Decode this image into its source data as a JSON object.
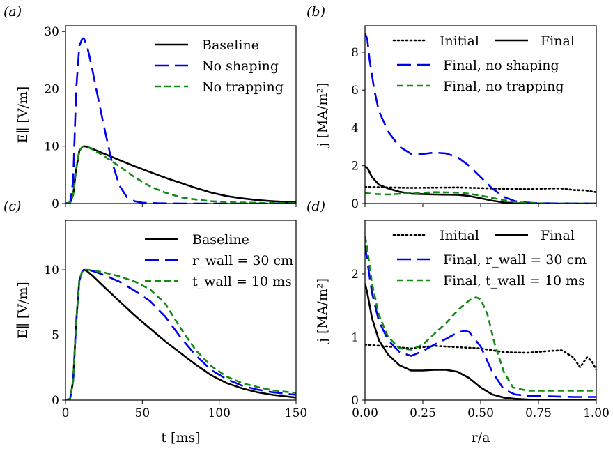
{
  "chart_data": [
    {
      "panel_label": "(a)",
      "type": "line",
      "xlabel": "",
      "ylabel": "E∥ [V/m]",
      "xlim": [
        0,
        150
      ],
      "ylim": [
        0,
        31
      ],
      "xticks": [
        0,
        50,
        100,
        150
      ],
      "xtick_labels": [
        "",
        "",
        "",
        ""
      ],
      "yticks": [
        0,
        10,
        20,
        30
      ],
      "ytick_labels": [
        "0",
        "10",
        "20",
        "30"
      ],
      "legend": {
        "position": "top-right",
        "columns": 1
      },
      "series": [
        {
          "name": "Baseline",
          "color": "#000000",
          "style": "solid",
          "x": [
            0,
            3,
            5,
            7,
            9,
            11,
            12,
            14,
            18,
            25,
            35,
            45,
            55,
            65,
            75,
            85,
            95,
            105,
            115,
            125,
            135,
            150
          ],
          "y": [
            0,
            0.1,
            1.5,
            6,
            9.2,
            9.9,
            10,
            9.9,
            9.5,
            8.7,
            7.6,
            6.5,
            5.5,
            4.5,
            3.6,
            2.7,
            1.9,
            1.3,
            0.9,
            0.6,
            0.4,
            0.2
          ]
        },
        {
          "name": "No shaping",
          "color": "#0000ee",
          "style": "longdash",
          "x": [
            0,
            3,
            5,
            7,
            9,
            11,
            12,
            14,
            17,
            20,
            25,
            30,
            35,
            40,
            45,
            50,
            60,
            75,
            100,
            150
          ],
          "y": [
            0,
            0.2,
            4,
            20,
            27.5,
            28.8,
            28.8,
            27.5,
            24,
            20,
            13.5,
            7.5,
            3.2,
            1.1,
            0.4,
            0.15,
            0.05,
            0,
            0,
            0
          ]
        },
        {
          "name": "No trapping",
          "color": "#138a13",
          "style": "dash",
          "x": [
            0,
            3,
            5,
            7,
            9,
            11,
            12,
            14,
            18,
            25,
            35,
            45,
            55,
            65,
            75,
            85,
            95,
            110,
            130,
            150
          ],
          "y": [
            0,
            0.1,
            1.5,
            6,
            9.2,
            9.9,
            10,
            9.9,
            9.4,
            8.3,
            6.5,
            4.6,
            3.0,
            1.9,
            1.1,
            0.7,
            0.4,
            0.2,
            0.1,
            0.05
          ]
        }
      ]
    },
    {
      "panel_label": "(b)",
      "type": "line",
      "xlabel": "",
      "ylabel": "j [MA/m²]",
      "xlim": [
        0,
        1
      ],
      "ylim": [
        0,
        9.4
      ],
      "xticks": [
        0,
        0.25,
        0.5,
        0.75,
        1.0
      ],
      "xtick_labels": [
        "",
        "",
        "",
        "",
        ""
      ],
      "yticks": [
        0,
        2,
        4,
        6,
        8
      ],
      "ytick_labels": [
        "0",
        "2",
        "4",
        "6",
        "8"
      ],
      "legend": {
        "position": "top-right",
        "columns": 2
      },
      "series": [
        {
          "name": "Initial",
          "color": "#000000",
          "style": "dot",
          "x": [
            0,
            0.1,
            0.2,
            0.3,
            0.4,
            0.5,
            0.6,
            0.7,
            0.8,
            0.85,
            0.9,
            0.95,
            1.0
          ],
          "y": [
            0.88,
            0.85,
            0.83,
            0.84,
            0.85,
            0.82,
            0.78,
            0.76,
            0.8,
            0.8,
            0.72,
            0.7,
            0.6
          ]
        },
        {
          "name": "Final",
          "color": "#000000",
          "style": "solid",
          "x": [
            0,
            0.01,
            0.03,
            0.06,
            0.1,
            0.15,
            0.2,
            0.3,
            0.4,
            0.45,
            0.5,
            0.55,
            0.6,
            0.65,
            0.7,
            0.8,
            1.0
          ],
          "y": [
            1.95,
            1.9,
            1.4,
            1.0,
            0.8,
            0.62,
            0.52,
            0.48,
            0.46,
            0.4,
            0.28,
            0.15,
            0.06,
            0.02,
            0.01,
            0,
            0
          ]
        },
        {
          "name": "Final, no shaping",
          "color": "#0000ee",
          "style": "longdash",
          "x": [
            0,
            0.01,
            0.02,
            0.04,
            0.06,
            0.1,
            0.15,
            0.2,
            0.25,
            0.3,
            0.35,
            0.4,
            0.45,
            0.5,
            0.55,
            0.6,
            0.65,
            0.7,
            0.75,
            0.8,
            1.0
          ],
          "y": [
            9,
            8.7,
            7.6,
            6.0,
            4.9,
            3.8,
            3.0,
            2.62,
            2.62,
            2.7,
            2.65,
            2.45,
            2.0,
            1.4,
            0.8,
            0.35,
            0.12,
            0.05,
            0.02,
            0.01,
            0
          ]
        },
        {
          "name": "Final, no trapping",
          "color": "#138a13",
          "style": "dash",
          "x": [
            0,
            0.05,
            0.1,
            0.2,
            0.3,
            0.4,
            0.45,
            0.5,
            0.55,
            0.6,
            0.65,
            0.7,
            0.75,
            0.8,
            1.0
          ],
          "y": [
            0.55,
            0.5,
            0.48,
            0.55,
            0.6,
            0.58,
            0.52,
            0.42,
            0.3,
            0.18,
            0.08,
            0.03,
            0.01,
            0,
            0
          ]
        }
      ]
    },
    {
      "panel_label": "(c)",
      "type": "line",
      "xlabel": "t [ms]",
      "ylabel": "E∥ [V/m]",
      "xlim": [
        0,
        150
      ],
      "ylim": [
        0,
        13.8
      ],
      "xticks": [
        0,
        50,
        100,
        150
      ],
      "xtick_labels": [
        "0",
        "50",
        "100",
        "150"
      ],
      "yticks": [
        0,
        5,
        10
      ],
      "ytick_labels": [
        "0",
        "5",
        "10"
      ],
      "legend": {
        "position": "top-right",
        "columns": 1
      },
      "series": [
        {
          "name": "Baseline",
          "color": "#000000",
          "style": "solid",
          "x": [
            0,
            3,
            5,
            7,
            9,
            11,
            12,
            14,
            18,
            25,
            35,
            45,
            55,
            65,
            75,
            85,
            95,
            105,
            115,
            125,
            135,
            150
          ],
          "y": [
            0,
            0.1,
            1.5,
            6,
            9.2,
            9.9,
            10,
            9.9,
            9.5,
            8.7,
            7.6,
            6.5,
            5.5,
            4.5,
            3.6,
            2.7,
            1.9,
            1.3,
            0.9,
            0.6,
            0.4,
            0.2
          ]
        },
        {
          "name": "r_wall = 30 cm",
          "color": "#0000ee",
          "style": "longdash",
          "x": [
            0,
            3,
            5,
            7,
            9,
            11,
            12,
            14,
            18,
            25,
            35,
            45,
            55,
            65,
            75,
            85,
            95,
            105,
            115,
            125,
            135,
            150
          ],
          "y": [
            0,
            0.1,
            1.5,
            6,
            9.2,
            9.9,
            10,
            10,
            9.9,
            9.6,
            9.1,
            8.4,
            7.6,
            6.4,
            4.8,
            3.4,
            2.3,
            1.6,
            1.1,
            0.8,
            0.6,
            0.4
          ]
        },
        {
          "name": "t_wall = 10 ms",
          "color": "#138a13",
          "style": "dash",
          "x": [
            0,
            3,
            5,
            7,
            9,
            11,
            12,
            14,
            18,
            25,
            35,
            45,
            55,
            65,
            75,
            85,
            95,
            105,
            115,
            125,
            135,
            150
          ],
          "y": [
            0,
            0.1,
            1.5,
            6,
            9.2,
            9.9,
            10,
            10,
            9.95,
            9.8,
            9.5,
            9.1,
            8.5,
            7.4,
            5.5,
            3.8,
            2.6,
            1.8,
            1.3,
            1.0,
            0.75,
            0.55
          ]
        }
      ]
    },
    {
      "panel_label": "(d)",
      "type": "line",
      "xlabel": "r/a",
      "ylabel": "j [MA/m²]",
      "xlim": [
        0,
        1
      ],
      "ylim": [
        0,
        2.85
      ],
      "xticks": [
        0,
        0.25,
        0.5,
        0.75,
        1.0
      ],
      "xtick_labels": [
        "0.00",
        "0.25",
        "0.50",
        "0.75",
        "1.00"
      ],
      "yticks": [
        0,
        1,
        2
      ],
      "ytick_labels": [
        "0",
        "1",
        "2"
      ],
      "legend": {
        "position": "top-right",
        "columns": 2
      },
      "series": [
        {
          "name": "Initial",
          "color": "#000000",
          "style": "dot",
          "x": [
            0,
            0.1,
            0.2,
            0.3,
            0.4,
            0.5,
            0.6,
            0.7,
            0.8,
            0.85,
            0.9,
            0.93,
            0.96,
            0.98,
            1.0
          ],
          "y": [
            0.88,
            0.85,
            0.82,
            0.86,
            0.84,
            0.82,
            0.76,
            0.75,
            0.78,
            0.79,
            0.68,
            0.52,
            0.68,
            0.62,
            0.48
          ]
        },
        {
          "name": "Final",
          "color": "#000000",
          "style": "solid",
          "x": [
            0,
            0.01,
            0.03,
            0.06,
            0.1,
            0.15,
            0.2,
            0.25,
            0.3,
            0.35,
            0.4,
            0.45,
            0.5,
            0.55,
            0.6,
            0.65,
            0.7,
            0.8,
            1.0
          ],
          "y": [
            1.85,
            1.7,
            1.3,
            0.95,
            0.72,
            0.55,
            0.47,
            0.47,
            0.48,
            0.48,
            0.45,
            0.35,
            0.2,
            0.09,
            0.04,
            0.02,
            0.01,
            0,
            0
          ]
        },
        {
          "name": "Final, r_wall = 30 cm",
          "color": "#0000ee",
          "style": "longdash",
          "x": [
            0,
            0.01,
            0.03,
            0.06,
            0.1,
            0.15,
            0.2,
            0.25,
            0.3,
            0.35,
            0.4,
            0.43,
            0.45,
            0.5,
            0.55,
            0.6,
            0.65,
            0.7,
            0.8,
            0.9,
            1.0
          ],
          "y": [
            2.45,
            2.2,
            1.7,
            1.25,
            0.95,
            0.76,
            0.7,
            0.78,
            0.88,
            0.97,
            1.07,
            1.1,
            1.08,
            0.85,
            0.45,
            0.17,
            0.09,
            0.07,
            0.06,
            0.05,
            0.05
          ]
        },
        {
          "name": "Final, t_wall = 10 ms",
          "color": "#138a13",
          "style": "dash",
          "x": [
            0,
            0.01,
            0.03,
            0.06,
            0.1,
            0.15,
            0.2,
            0.25,
            0.3,
            0.35,
            0.4,
            0.45,
            0.48,
            0.5,
            0.53,
            0.56,
            0.6,
            0.64,
            0.7,
            0.8,
            0.9,
            1.0
          ],
          "y": [
            2.6,
            2.4,
            1.85,
            1.35,
            1.0,
            0.82,
            0.8,
            0.88,
            1.05,
            1.22,
            1.42,
            1.58,
            1.63,
            1.6,
            1.35,
            0.9,
            0.45,
            0.2,
            0.15,
            0.15,
            0.15,
            0.15
          ]
        }
      ]
    }
  ]
}
